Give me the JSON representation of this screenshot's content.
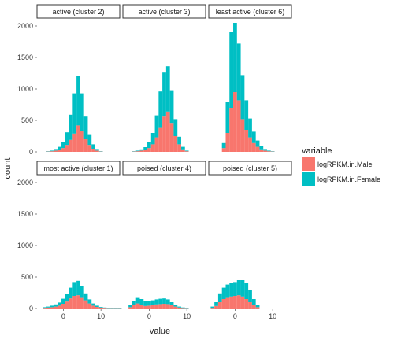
{
  "chart_data": {
    "type": "bar",
    "subtype": "stacked-histogram-facets",
    "xlabel": "value",
    "ylabel": "count",
    "xlim": [
      -7,
      15
    ],
    "ylim": [
      0,
      2100
    ],
    "x_ticks": [
      0,
      10
    ],
    "x_tick_labels": [
      "0",
      "10"
    ],
    "y_ticks": [
      0,
      500,
      1000,
      1500,
      2000
    ],
    "y_tick_labels": [
      "0",
      "500",
      "1000",
      "1500",
      "2000"
    ],
    "bin_width": 1,
    "grid": false,
    "legend": {
      "title": "variable",
      "position": "right",
      "entries": [
        {
          "name": "logRPKM.in.Male",
          "color": "#F8766D"
        },
        {
          "name": "logRPKM.in.Female",
          "color": "#00BFC4"
        }
      ]
    },
    "panels": [
      {
        "title": "active (cluster 2)",
        "x": [
          -4,
          -3,
          -2,
          -1,
          0,
          1,
          2,
          3,
          4,
          5,
          6,
          7,
          8,
          9,
          10
        ],
        "series": [
          {
            "name": "logRPKM.in.Male",
            "values": [
              5,
              10,
              20,
              35,
              60,
              110,
              190,
              290,
              420,
              330,
              210,
              110,
              50,
              20,
              5
            ]
          },
          {
            "name": "logRPKM.in.Female",
            "values": [
              5,
              10,
              25,
              45,
              90,
              200,
              400,
              640,
              780,
              600,
              350,
              170,
              70,
              25,
              5
            ]
          }
        ]
      },
      {
        "title": "active (cluster 3)",
        "x": [
          -4,
          -3,
          -2,
          -1,
          0,
          1,
          2,
          3,
          4,
          5,
          6,
          7,
          8,
          9,
          10
        ],
        "series": [
          {
            "name": "logRPKM.in.Male",
            "values": [
              5,
              10,
              20,
              35,
              60,
              120,
              230,
              380,
              560,
              640,
              460,
              250,
              120,
              40,
              10
            ]
          },
          {
            "name": "logRPKM.in.Female",
            "values": [
              5,
              10,
              20,
              40,
              90,
              180,
              350,
              580,
              700,
              720,
              520,
              270,
              120,
              40,
              10
            ]
          }
        ]
      },
      {
        "title": "least active (cluster 6)",
        "x": [
          -3,
          -2,
          -1,
          0,
          1,
          2,
          3,
          4,
          5,
          6,
          7,
          8,
          9,
          10
        ],
        "series": [
          {
            "name": "logRPKM.in.Male",
            "values": [
              60,
              300,
              700,
              950,
              820,
              520,
              350,
              230,
              140,
              80,
              40,
              20,
              10,
              5
            ]
          },
          {
            "name": "logRPKM.in.Female",
            "values": [
              80,
              500,
              1200,
              1100,
              900,
              700,
              470,
              300,
              180,
              100,
              50,
              25,
              10,
              5
            ]
          }
        ]
      },
      {
        "title": "most active (cluster 1)",
        "x": [
          -5,
          -4,
          -3,
          -2,
          -1,
          0,
          1,
          2,
          3,
          4,
          5,
          6,
          7,
          8,
          9,
          10,
          11,
          12,
          13,
          14,
          15
        ],
        "series": [
          {
            "name": "logRPKM.in.Male",
            "values": [
              10,
              15,
              20,
              30,
              45,
              75,
              110,
              160,
              200,
              210,
              180,
              130,
              80,
              45,
              25,
              15,
              10,
              5,
              5,
              5,
              5
            ]
          },
          {
            "name": "logRPKM.in.Female",
            "values": [
              10,
              15,
              25,
              35,
              50,
              80,
              120,
              170,
              220,
              230,
              180,
              110,
              65,
              35,
              20,
              10,
              5,
              5,
              5,
              5,
              5
            ]
          }
        ]
      },
      {
        "title": "poised (cluster 4)",
        "x": [
          -5,
          -4,
          -3,
          -2,
          -1,
          0,
          1,
          2,
          3,
          4,
          5,
          6,
          7,
          8,
          9,
          10
        ],
        "series": [
          {
            "name": "logRPKM.in.Male",
            "values": [
              20,
              50,
              80,
              60,
              40,
              45,
              55,
              65,
              70,
              75,
              70,
              50,
              30,
              15,
              8,
              5
            ]
          },
          {
            "name": "logRPKM.in.Female",
            "values": [
              30,
              70,
              100,
              90,
              80,
              75,
              75,
              80,
              85,
              85,
              75,
              50,
              30,
              15,
              8,
              5
            ]
          }
        ]
      },
      {
        "title": "poised (cluster 5)",
        "x": [
          -6,
          -5,
          -4,
          -3,
          -2,
          -1,
          0,
          1,
          2,
          3,
          4,
          5,
          6
        ],
        "series": [
          {
            "name": "logRPKM.in.Male",
            "values": [
              10,
              40,
              100,
              150,
              180,
              190,
              200,
              210,
              190,
              150,
              100,
              50,
              20
            ]
          },
          {
            "name": "logRPKM.in.Female",
            "values": [
              20,
              60,
              140,
              180,
              200,
              220,
              220,
              240,
              260,
              250,
              190,
              100,
              30
            ]
          }
        ]
      }
    ]
  }
}
